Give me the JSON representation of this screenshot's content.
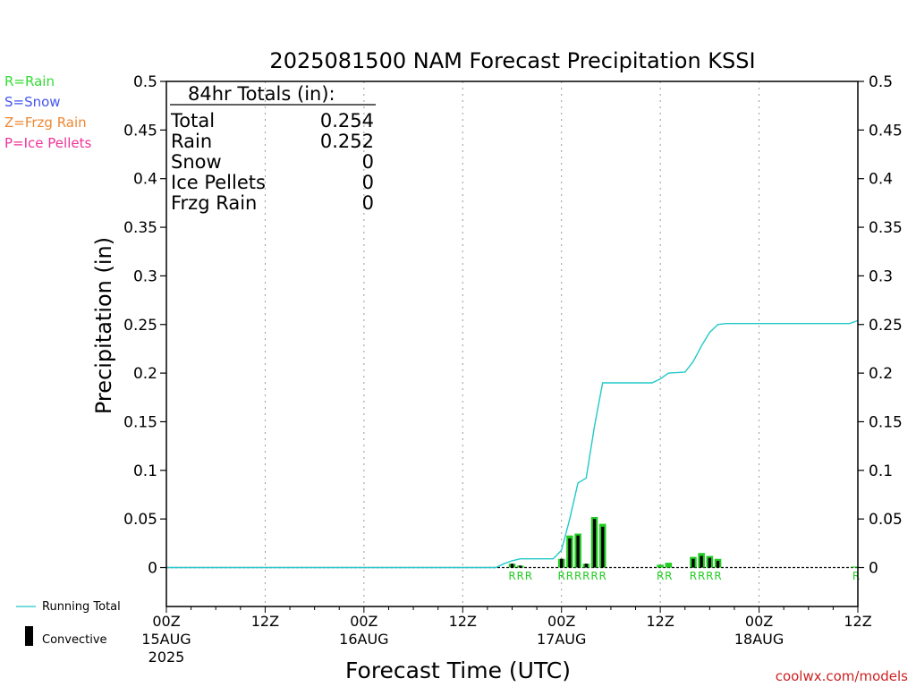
{
  "chart_data": {
    "type": "bar",
    "title": "2025081500 NAM Forecast Precipitation KSSI",
    "xlabel": "Forecast Time (UTC)",
    "ylabel": "Precipitation (in)",
    "ylim": [
      -0.04,
      0.5
    ],
    "xlim_hours": [
      0,
      84
    ],
    "y_ticks": [
      "0",
      "0.05",
      "0.1",
      "0.15",
      "0.2",
      "0.25",
      "0.3",
      "0.35",
      "0.4",
      "0.45",
      "0.5"
    ],
    "y_tick_values": [
      0,
      0.05,
      0.1,
      0.15,
      0.2,
      0.25,
      0.3,
      0.35,
      0.4,
      0.45,
      0.5
    ],
    "x_ticks": [
      {
        "hour": 0,
        "label": "00Z",
        "date": "15AUG",
        "year": "2025"
      },
      {
        "hour": 12,
        "label": "12Z",
        "date": "",
        "year": ""
      },
      {
        "hour": 24,
        "label": "00Z",
        "date": "16AUG",
        "year": ""
      },
      {
        "hour": 36,
        "label": "12Z",
        "date": "",
        "year": ""
      },
      {
        "hour": 48,
        "label": "00Z",
        "date": "17AUG",
        "year": ""
      },
      {
        "hour": 60,
        "label": "12Z",
        "date": "",
        "year": ""
      },
      {
        "hour": 72,
        "label": "00Z",
        "date": "18AUG",
        "year": ""
      },
      {
        "hour": 84,
        "label": "12Z",
        "date": "",
        "year": ""
      }
    ],
    "grid": "vertical dotted",
    "legend_left": [
      {
        "text": "R=Rain",
        "color": "#33dd33"
      },
      {
        "text": "S=Snow",
        "color": "#4455ee"
      },
      {
        "text": "Z=Frzg Rain",
        "color": "#ee8833"
      },
      {
        "text": "P=Ice Pellets",
        "color": "#ee3399"
      }
    ],
    "legend_bottom": {
      "running_total": "Running Total",
      "convective": "Convective"
    },
    "totals": {
      "header": "84hr Totals (in):",
      "rows": [
        {
          "label": "Total",
          "value": "0.254"
        },
        {
          "label": "Rain",
          "value": "0.252"
        },
        {
          "label": "Snow",
          "value": "0"
        },
        {
          "label": "Ice Pellets",
          "value": "0"
        },
        {
          "label": "Frzg Rain",
          "value": "0"
        }
      ]
    },
    "bars": [
      {
        "hour": 42,
        "total": 0.004,
        "convective": 0.004,
        "ptype": "R"
      },
      {
        "hour": 43,
        "total": 0.002,
        "convective": 0.002,
        "ptype": "R"
      },
      {
        "hour": 44,
        "total": 0.0,
        "convective": 0.0,
        "ptype": "R"
      },
      {
        "hour": 48,
        "total": 0.009,
        "convective": 0.009,
        "ptype": "R"
      },
      {
        "hour": 49,
        "total": 0.033,
        "convective": 0.03,
        "ptype": "R"
      },
      {
        "hour": 50,
        "total": 0.035,
        "convective": 0.033,
        "ptype": "R"
      },
      {
        "hour": 51,
        "total": 0.004,
        "convective": 0.004,
        "ptype": "R"
      },
      {
        "hour": 52,
        "total": 0.052,
        "convective": 0.05,
        "ptype": "R"
      },
      {
        "hour": 53,
        "total": 0.045,
        "convective": 0.042,
        "ptype": "R"
      },
      {
        "hour": 60,
        "total": 0.003,
        "convective": 0.0,
        "ptype": "R"
      },
      {
        "hour": 61,
        "total": 0.005,
        "convective": 0.0,
        "ptype": "R"
      },
      {
        "hour": 64,
        "total": 0.011,
        "convective": 0.009,
        "ptype": "R"
      },
      {
        "hour": 65,
        "total": 0.015,
        "convective": 0.012,
        "ptype": "R"
      },
      {
        "hour": 66,
        "total": 0.012,
        "convective": 0.01,
        "ptype": "R"
      },
      {
        "hour": 67,
        "total": 0.009,
        "convective": 0.007,
        "ptype": "R"
      },
      {
        "hour": 84,
        "total": 0.001,
        "convective": 0.0,
        "ptype": "R"
      }
    ],
    "running_total": {
      "name": "Running Total",
      "points": [
        [
          0,
          0
        ],
        [
          40,
          0
        ],
        [
          41,
          0.004
        ],
        [
          42,
          0.007
        ],
        [
          43,
          0.009
        ],
        [
          47,
          0.009
        ],
        [
          48,
          0.018
        ],
        [
          49,
          0.05
        ],
        [
          50,
          0.087
        ],
        [
          51,
          0.092
        ],
        [
          52,
          0.145
        ],
        [
          53,
          0.19
        ],
        [
          59,
          0.19
        ],
        [
          60,
          0.194
        ],
        [
          61,
          0.2
        ],
        [
          63,
          0.201
        ],
        [
          64,
          0.212
        ],
        [
          65,
          0.228
        ],
        [
          66,
          0.242
        ],
        [
          67,
          0.25
        ],
        [
          68,
          0.251
        ],
        [
          83,
          0.251
        ],
        [
          84,
          0.254
        ]
      ]
    },
    "colors": {
      "rain_bar": "#22cc22",
      "convective_bar": "#000000",
      "running_total": "#22c8c8",
      "title": "#000000",
      "watermark": "#cc2222"
    },
    "watermark": "coolwx.com/models"
  }
}
